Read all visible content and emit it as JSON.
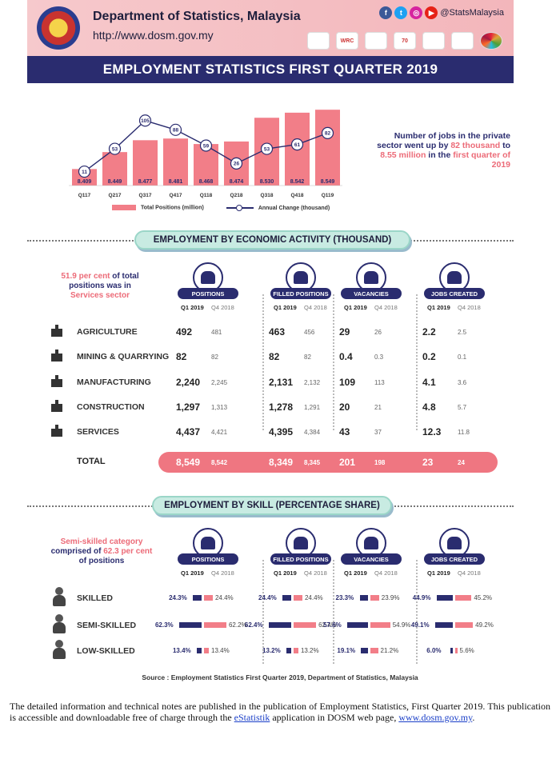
{
  "header": {
    "department": "Department of Statistics, Malaysia",
    "url": "http://www.dosm.gov.my",
    "social_handle": "@StatsMalaysia",
    "banner": "EMPLOYMENT STATISTICS FIRST QUARTER 2019",
    "logo_text": [
      "",
      "WRC",
      "",
      "70",
      "",
      "",
      ""
    ]
  },
  "chart_data": {
    "type": "bar",
    "categories": [
      "Q117",
      "Q217",
      "Q317",
      "Q417",
      "Q118",
      "Q218",
      "Q318",
      "Q418",
      "Q119"
    ],
    "series": [
      {
        "name": "Total Positions (million)",
        "type": "bar",
        "values": [
          8.409,
          8.449,
          8.477,
          8.481,
          8.468,
          8.474,
          8.53,
          8.542,
          8.549
        ]
      },
      {
        "name": "Annual Change (thousand)",
        "type": "line",
        "values": [
          11,
          53,
          105,
          88,
          59,
          26,
          53,
          61,
          82
        ]
      }
    ],
    "legend": "bottom"
  },
  "note": {
    "part1": "Number of jobs in the private sector went up by ",
    "hl1": "82 thousand",
    "part2": " to ",
    "hl2": "8.55 million",
    "part3": " in the ",
    "hl3": "first quarter of 2019"
  },
  "activity": {
    "title": "EMPLOYMENT BY ECONOMIC ACTIVITY (THOUSAND)",
    "callout_hl": "51.9 per cent",
    "callout_rest1": " of total positions was in ",
    "callout_hl2": "Services sector",
    "columns": [
      "POSITIONS",
      "FILLED POSITIONS",
      "VACANCIES",
      "JOBS CREATED"
    ],
    "q1": "Q1 2019",
    "q4": "Q4 2018",
    "rows": [
      {
        "label": "AGRICULTURE",
        "vals": [
          "492",
          "481",
          "463",
          "456",
          "29",
          "26",
          "2.2",
          "2.5"
        ]
      },
      {
        "label": "MINING & QUARRYING",
        "vals": [
          "82",
          "82",
          "82",
          "82",
          "0.4",
          "0.3",
          "0.2",
          "0.1"
        ]
      },
      {
        "label": "MANUFACTURING",
        "vals": [
          "2,240",
          "2,245",
          "2,131",
          "2,132",
          "109",
          "113",
          "4.1",
          "3.6"
        ]
      },
      {
        "label": "CONSTRUCTION",
        "vals": [
          "1,297",
          "1,313",
          "1,278",
          "1,291",
          "20",
          "21",
          "4.8",
          "5.7"
        ]
      },
      {
        "label": "SERVICES",
        "vals": [
          "4,437",
          "4,421",
          "4,395",
          "4,384",
          "43",
          "37",
          "12.3",
          "11.8"
        ]
      }
    ],
    "total_label": "TOTAL",
    "total": [
      "8,549",
      "8,542",
      "8,349",
      "8,345",
      "201",
      "198",
      "23",
      "24"
    ]
  },
  "skill": {
    "title": "EMPLOYMENT BY SKILL (PERCENTAGE SHARE)",
    "callout_hl": "Semi-skilled category",
    "callout_rest1": " comprised of ",
    "callout_hl2": "62.3 per cent",
    "callout_rest2": " of positions",
    "columns": [
      "POSITIONS",
      "FILLED POSITIONS",
      "VACANCIES",
      "JOBS CREATED"
    ],
    "q1": "Q1 2019",
    "q4": "Q4 2018",
    "rows": [
      {
        "label": "SKILLED",
        "vals": [
          24.3,
          24.4,
          24.4,
          24.4,
          23.3,
          23.9,
          44.9,
          45.2
        ],
        "text": [
          "24.3%",
          "24.4%",
          "24.4%",
          "24.4%",
          "23.3%",
          "23.9%",
          "44.9%",
          "45.2%"
        ]
      },
      {
        "label": "SEMI-SKILLED",
        "vals": [
          62.3,
          62.2,
          62.4,
          62.4,
          57.6,
          54.9,
          49.1,
          49.2
        ],
        "text": [
          "62.3%",
          "62.2%",
          "62.4%",
          "62.4%",
          "57.6%",
          "54.9%",
          "49.1%",
          "49.2%"
        ]
      },
      {
        "label": "LOW-SKILLED",
        "vals": [
          13.4,
          13.4,
          13.2,
          13.2,
          19.1,
          21.2,
          6.0,
          5.6
        ],
        "text": [
          "13.4%",
          "13.4%",
          "13.2%",
          "13.2%",
          "19.1%",
          "21.2%",
          "6.0%",
          "5.6%"
        ]
      }
    ]
  },
  "source": "Source : Employment Statistics First Quarter 2019, Department of Statistics, Malaysia",
  "footer": {
    "text1": "The detailed information and technical notes are published in the publication of Employment Statistics, First Quarter 2019. This publication is accessible and downloadable free of charge through the ",
    "link1": "eStatistik",
    "text2": " application in DOSM web page, ",
    "link2": "www.dosm.gov.my",
    "text3": "."
  },
  "colors": {
    "navy": "#2a2c6f",
    "pink": "#f27e88",
    "mint": "#c8ebe2"
  }
}
